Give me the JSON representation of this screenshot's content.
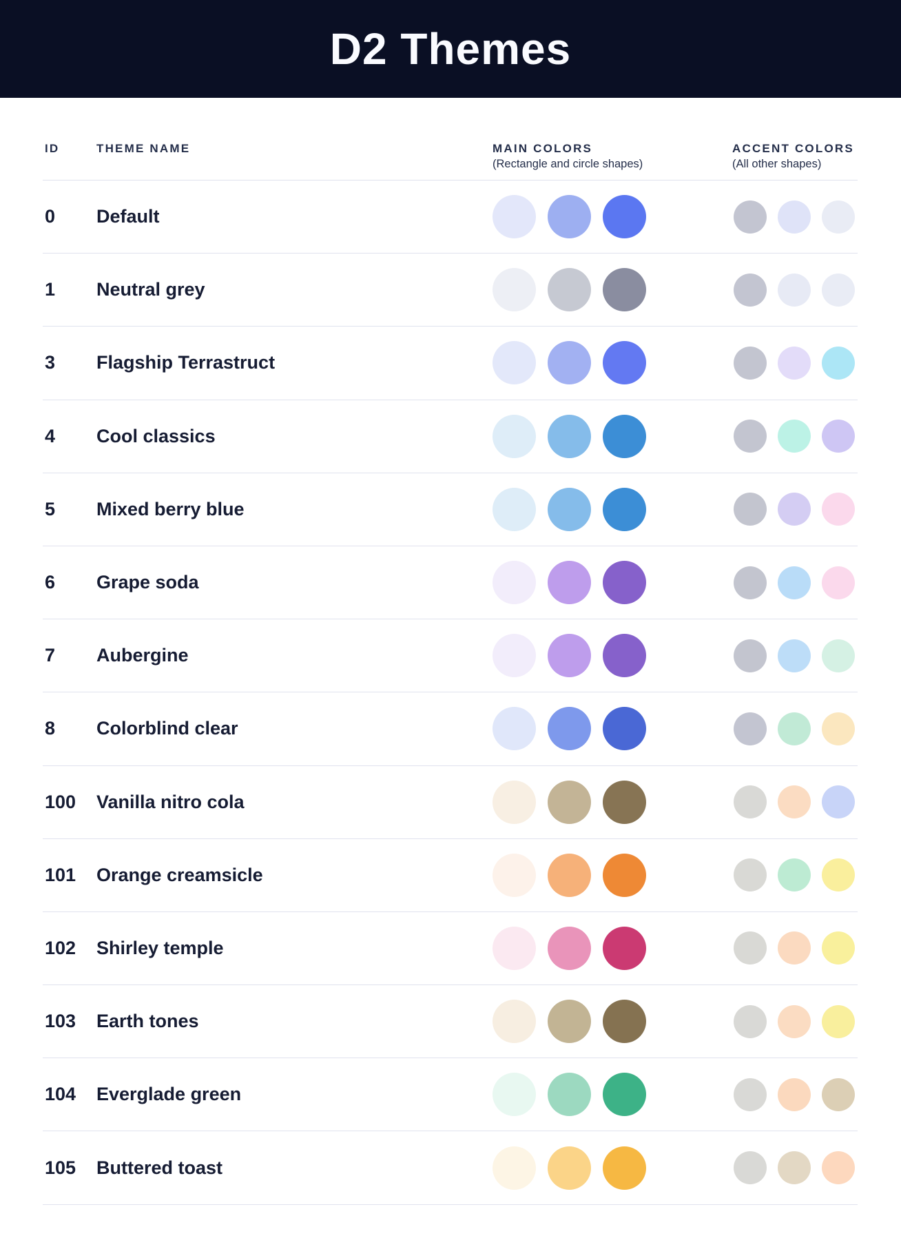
{
  "header": {
    "title": "D2 Themes"
  },
  "columns": {
    "id_label": "ID",
    "name_label": "THEME NAME",
    "main_label": "MAIN COLORS",
    "main_sub": "(Rectangle and circle shapes)",
    "accent_label": "ACCENT COLORS",
    "accent_sub": "(All other shapes)"
  },
  "colors": {
    "header_bg": "#0A0F24",
    "title_text": "#FAFBFF",
    "divider": "#E0E2EE",
    "heading_text": "#242E4A",
    "row_text": "#161C33"
  },
  "themes": [
    {
      "id": "0",
      "name": "Default",
      "main_colors": [
        "#E3E7FA",
        "#9DAFF1",
        "#5B77F1"
      ],
      "accent_colors": [
        "#C3C5D1",
        "#DFE3F8",
        "#E9ECF5"
      ]
    },
    {
      "id": "1",
      "name": "Neutral grey",
      "main_colors": [
        "#EDEFF5",
        "#C6C9D2",
        "#8A8DA0"
      ],
      "accent_colors": [
        "#C3C5D1",
        "#E7EAF5",
        "#E9ECF5"
      ]
    },
    {
      "id": "3",
      "name": "Flagship Terrastruct",
      "main_colors": [
        "#E3E8FA",
        "#A2B1F2",
        "#6379F2"
      ],
      "accent_colors": [
        "#C3C5D0",
        "#E3DCF9",
        "#ACE6F6"
      ]
    },
    {
      "id": "4",
      "name": "Cool classics",
      "main_colors": [
        "#DEEDF8",
        "#85BCEA",
        "#3C8ED6"
      ],
      "accent_colors": [
        "#C3C5D0",
        "#BCF2E6",
        "#CEC6F4"
      ]
    },
    {
      "id": "5",
      "name": "Mixed berry blue",
      "main_colors": [
        "#DEEDF8",
        "#85BCEA",
        "#3C8ED6"
      ],
      "accent_colors": [
        "#C3C5CF",
        "#D4CDF3",
        "#FBD9EC"
      ]
    },
    {
      "id": "6",
      "name": "Grape soda",
      "main_colors": [
        "#F2EDFB",
        "#BE9DEC",
        "#8661CB"
      ],
      "accent_colors": [
        "#C3C5CF",
        "#B9DCF8",
        "#FBD9EC"
      ]
    },
    {
      "id": "7",
      "name": "Aubergine",
      "main_colors": [
        "#F2EDFB",
        "#BE9DEC",
        "#8661CB"
      ],
      "accent_colors": [
        "#C3C5CF",
        "#BDDDF8",
        "#D5F1E4"
      ]
    },
    {
      "id": "8",
      "name": "Colorblind clear",
      "main_colors": [
        "#E0E7FA",
        "#7E99EC",
        "#4A68D5"
      ],
      "accent_colors": [
        "#C3C5D1",
        "#C1EAD6",
        "#FBE7BF"
      ]
    },
    {
      "id": "100",
      "name": "Vanilla nitro cola",
      "main_colors": [
        "#F8EFE3",
        "#C3B496",
        "#877454"
      ],
      "accent_colors": [
        "#D9D9D6",
        "#FBDCC2",
        "#C8D4F8"
      ]
    },
    {
      "id": "101",
      "name": "Orange creamsicle",
      "main_colors": [
        "#FDF2EA",
        "#F6B179",
        "#EE8935"
      ],
      "accent_colors": [
        "#D9D9D5",
        "#BDEBD3",
        "#FAEF9D"
      ]
    },
    {
      "id": "102",
      "name": "Shirley temple",
      "main_colors": [
        "#FBE9F1",
        "#E994BA",
        "#CB3A72"
      ],
      "accent_colors": [
        "#D9D9D5",
        "#FBDAC0",
        "#F9F09C"
      ]
    },
    {
      "id": "103",
      "name": "Earth tones",
      "main_colors": [
        "#F7EEE1",
        "#C2B494",
        "#857251"
      ],
      "accent_colors": [
        "#D9D9D6",
        "#FBDCC2",
        "#F9EF9D"
      ]
    },
    {
      "id": "104",
      "name": "Everglade green",
      "main_colors": [
        "#E8F8F1",
        "#9CD9C0",
        "#3DB287"
      ],
      "accent_colors": [
        "#D9D9D6",
        "#FBD9BE",
        "#DCCFB5"
      ]
    },
    {
      "id": "105",
      "name": "Buttered toast",
      "main_colors": [
        "#FDF5E5",
        "#FBD488",
        "#F6B843"
      ],
      "accent_colors": [
        "#D9D9D6",
        "#E3D8C4",
        "#FDD8BE"
      ]
    }
  ]
}
